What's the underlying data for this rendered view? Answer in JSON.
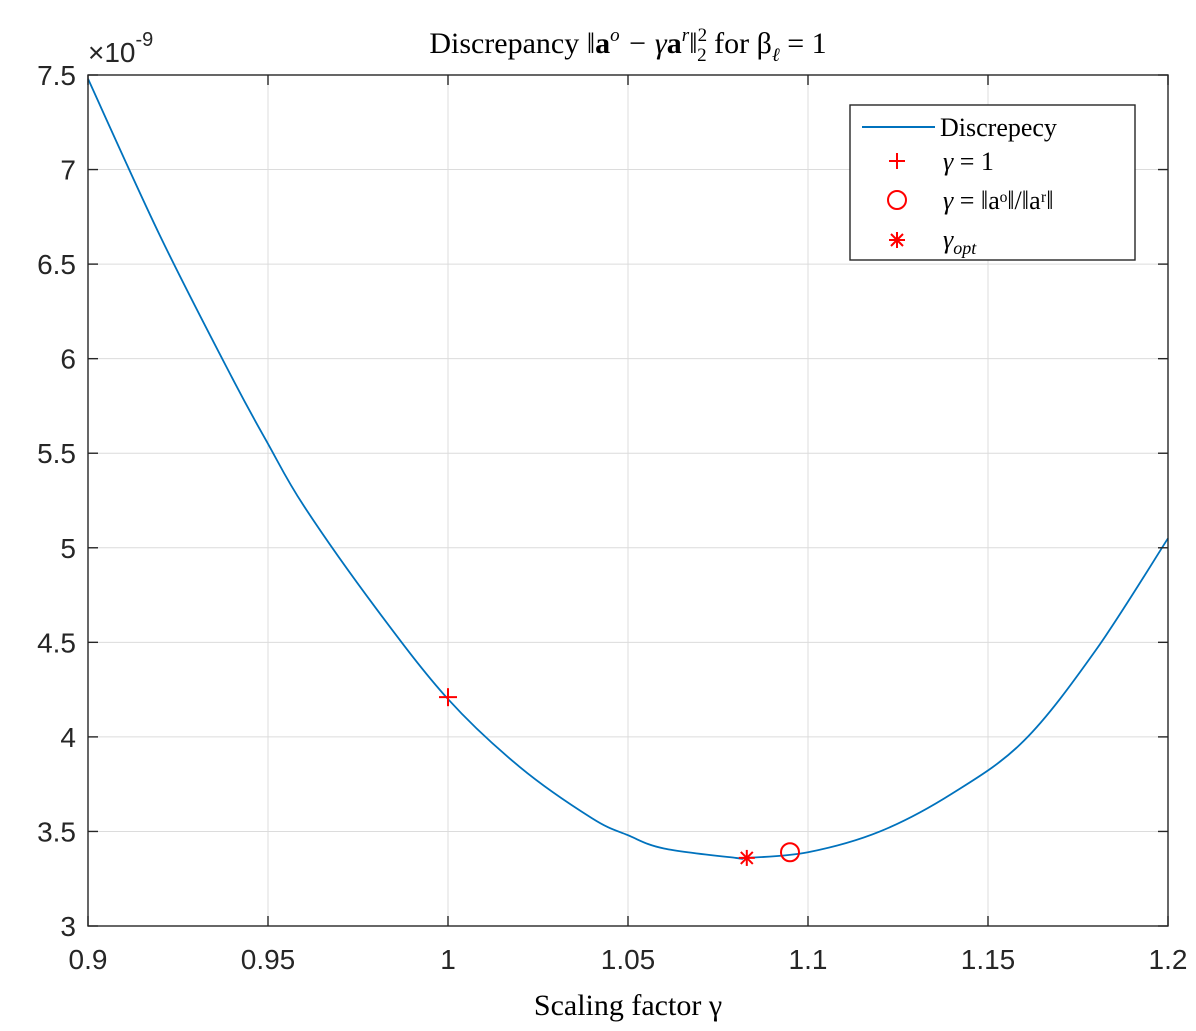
{
  "chart_data": {
    "type": "line",
    "title": {
      "prefix": "Discrepancy ‖",
      "a1": "a",
      "sup1": "o",
      "mid": " − γ",
      "a2": "a",
      "sup2": "r",
      "close": "‖",
      "sub": "2",
      "sup": "2",
      "for_text": " for β",
      "beta_sub": "ℓ",
      "suffix": " = 1"
    },
    "xlabel": "Scaling factor γ",
    "ylabel": "",
    "y_multiplier": {
      "base": "×10",
      "exponent": "-9"
    },
    "xlim": [
      0.9,
      1.2
    ],
    "ylim": [
      3,
      7.5
    ],
    "x_ticks": [
      0.9,
      0.95,
      1.0,
      1.05,
      1.1,
      1.15,
      1.2
    ],
    "x_tick_labels": [
      "0.9",
      "0.95",
      "1",
      "1.05",
      "1.1",
      "1.15",
      "1.2"
    ],
    "y_ticks": [
      3,
      3.5,
      4,
      4.5,
      5,
      5.5,
      6,
      6.5,
      7,
      7.5
    ],
    "y_tick_labels": [
      "3",
      "3.5",
      "4",
      "4.5",
      "5",
      "5.5",
      "6",
      "6.5",
      "7",
      "7.5"
    ],
    "grid": true,
    "legend_position": "top-right",
    "series": [
      {
        "name": "Discrepecy",
        "color": "#0072BD",
        "x": [
          0.9,
          0.92,
          0.94,
          0.95,
          0.96,
          0.98,
          1.0,
          1.02,
          1.04,
          1.05,
          1.06,
          1.08,
          1.083,
          1.1,
          1.12,
          1.14,
          1.16,
          1.18,
          1.2
        ],
        "y": [
          7.48,
          6.65,
          5.9,
          5.55,
          5.22,
          4.68,
          4.2,
          3.84,
          3.57,
          3.48,
          3.41,
          3.36,
          3.36,
          3.39,
          3.5,
          3.7,
          3.98,
          4.46,
          5.05
        ]
      }
    ],
    "markers": [
      {
        "label_lhs": "γ",
        "label_rhs": " = 1",
        "symbol": "plus",
        "color": "#FF0000",
        "x": 1.0,
        "y": 4.21
      },
      {
        "label_lhs": "γ",
        "label_rhs": " = ‖aᵒ‖/‖aʳ‖",
        "symbol": "circle",
        "color": "#FF0000",
        "x": 1.095,
        "y": 3.39
      },
      {
        "label_lhs": "γ",
        "label_sub": "opt",
        "symbol": "asterisk",
        "color": "#FF0000",
        "x": 1.083,
        "y": 3.36
      }
    ]
  }
}
